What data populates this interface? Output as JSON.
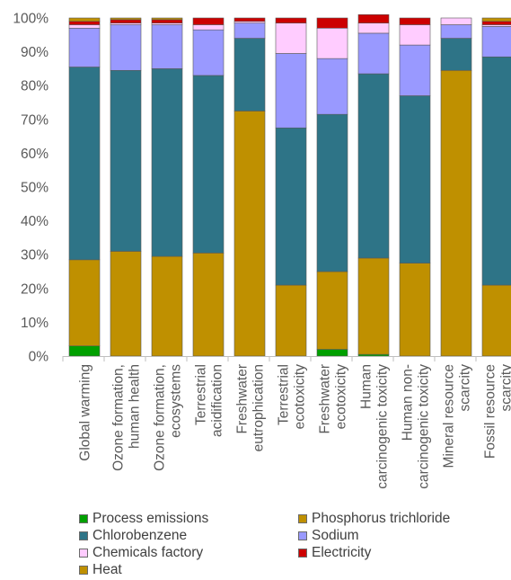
{
  "chart_data": {
    "type": "bar",
    "stacked": true,
    "title": "",
    "xlabel": "",
    "ylabel": "",
    "ylim": [
      0,
      100
    ],
    "y_tick_labels": [
      "0%",
      "10%",
      "20%",
      "30%",
      "40%",
      "50%",
      "60%",
      "70%",
      "80%",
      "90%",
      "100%"
    ],
    "grid": false,
    "legend_position": "bottom",
    "categories": [
      [
        "Global warming"
      ],
      [
        "Ozone formation,",
        "human health"
      ],
      [
        "Ozone formation,",
        "ecosystems"
      ],
      [
        "Terrestrial",
        "acidification"
      ],
      [
        "Freshwater",
        "eutrophication"
      ],
      [
        "Terrestrial",
        "ecotoxicity"
      ],
      [
        "Freshwater",
        "ecotoxicity"
      ],
      [
        "Human",
        "carcinogenic toxicity"
      ],
      [
        "Human non-",
        "carcinogenic toxicity"
      ],
      [
        "Mineral resource",
        "scarcity"
      ],
      [
        "Fossil resource",
        "scarcity"
      ]
    ],
    "series": [
      {
        "name": "Process emissions",
        "color": "#00a000",
        "values": [
          3,
          0,
          0,
          0,
          0,
          0,
          2,
          0.5,
          0,
          0,
          0
        ]
      },
      {
        "name": "Phosphorus trichloride",
        "color": "#bf9000",
        "values": [
          25.5,
          31,
          29.5,
          30.5,
          72.5,
          21,
          23,
          28.5,
          27.5,
          84.5,
          21
        ]
      },
      {
        "name": "Chlorobenzene",
        "color": "#2e7487",
        "values": [
          57,
          53.5,
          55.5,
          52.5,
          21.5,
          46.5,
          46.5,
          54.5,
          49.5,
          9.5,
          67.5
        ]
      },
      {
        "name": "Sodium",
        "color": "#9999ff",
        "values": [
          11.5,
          13.5,
          13,
          13.5,
          4.5,
          22,
          16.5,
          12,
          15,
          4,
          9
        ]
      },
      {
        "name": "Chemicals factory",
        "color": "#ffccff",
        "values": [
          1,
          0.5,
          0.5,
          1.5,
          0.5,
          9,
          9,
          3,
          6,
          2,
          0.5
        ]
      },
      {
        "name": "Electricity",
        "color": "#cc0000",
        "values": [
          1,
          1,
          1,
          2,
          1,
          1.5,
          3,
          2.5,
          2,
          0,
          1
        ]
      },
      {
        "name": "Heat",
        "color": "#bf9000",
        "values": [
          1,
          0.5,
          0.5,
          0,
          0,
          0,
          0,
          0,
          0,
          0,
          1
        ]
      }
    ]
  }
}
